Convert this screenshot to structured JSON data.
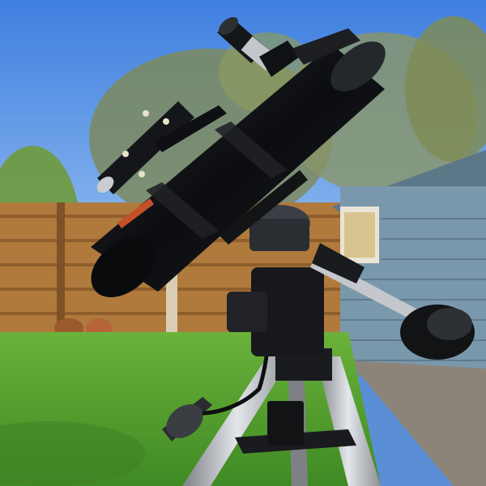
{
  "scene": {
    "description_hidden": "",
    "colors": {
      "sky_top": "#3f7fe0",
      "sky_bottom": "#9cc3f0",
      "grass": "#5aa32f",
      "grass_dark": "#3f7d22",
      "fence": "#b07a3c",
      "fence_dark": "#7d5226",
      "shed": "#7a98ab",
      "shed_dark": "#5b7788",
      "shed_trim": "#e9e4d6",
      "tree": "#6f7d52",
      "telescope": "#111316",
      "metal": "#b9bcc0",
      "path": "#8c8478"
    }
  }
}
